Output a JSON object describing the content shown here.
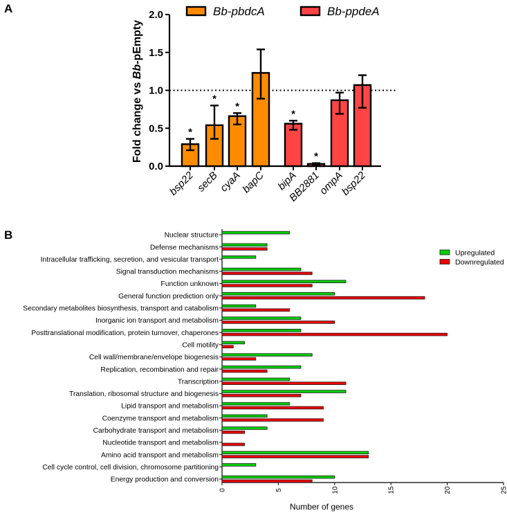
{
  "panels": {
    "a": "A",
    "b": "B"
  },
  "chart_data": [
    {
      "type": "bar",
      "panel": "A",
      "ylabel_prefix": "Fold change vs ",
      "ylabel_italic": "Bb",
      "ylabel_suffix": "-pEmpty",
      "ylim": [
        0,
        2.0
      ],
      "yticks": [
        "0.0",
        "0.5",
        "1.0",
        "1.5",
        "2.0"
      ],
      "reference_line": 1.0,
      "legend": [
        {
          "name": "Bb-pbdcA",
          "color": "#ff8c00"
        },
        {
          "name": "Bb-ppdeA",
          "color": "#ff4444"
        }
      ],
      "series": [
        {
          "name": "Bb-pbdcA",
          "color": "#ff8c00",
          "categories": [
            "bsp22",
            "secB",
            "cyaA",
            "bapC"
          ],
          "values": [
            0.29,
            0.54,
            0.66,
            1.23
          ],
          "err_low": [
            0.21,
            0.36,
            0.55,
            0.89
          ],
          "err_high": [
            0.36,
            0.8,
            0.7,
            1.54
          ],
          "significant": [
            true,
            true,
            true,
            false
          ]
        },
        {
          "name": "Bb-ppdeA",
          "color": "#ff4444",
          "categories": [
            "bipA",
            "BB2881",
            "ompA",
            "bsp22"
          ],
          "values": [
            0.56,
            0.03,
            0.87,
            1.07
          ],
          "err_low": [
            0.48,
            0.02,
            0.69,
            0.77
          ],
          "err_high": [
            0.6,
            0.04,
            0.97,
            1.2
          ],
          "significant": [
            true,
            true,
            false,
            false
          ]
        }
      ],
      "significance_mark": "*"
    },
    {
      "type": "bar",
      "panel": "B",
      "orientation": "horizontal",
      "xlabel": "Number of genes",
      "xlim": [
        0,
        25
      ],
      "xticks": [
        "0",
        "5",
        "10",
        "15",
        "20",
        "25"
      ],
      "legend_position": "top-right",
      "categories": [
        "Nuclear structure",
        "Defense mechanisms",
        "Intracellular trafficking, secretion, and vesicular transport",
        "Signal transduction mechanisms",
        "Function unknown",
        "General function prediction only",
        "Secondary metabolites biosynthesis, transport and catabolism",
        "Inorganic ion transport and metabolism",
        "Posttranslational modification, protein turnover, chaperones",
        "Cell motility",
        "Cell wall/membrane/envelope biogenesis",
        "Replication, recombination and repair",
        "Transcription",
        "Translation, ribosomal structure and biogenesis",
        "Lipid transport and metabolism",
        "Coenzyme transport and metabolism",
        "Carbohydrate transport and metabolism",
        "Nucleotide transport and metabolism",
        "Amino acid transport and metabolism",
        "Cell cycle control, cell division, chromosome partitioning",
        "Energy production and conversion"
      ],
      "series": [
        {
          "name": "Upregulated",
          "color": "#00cc00",
          "values": [
            6,
            4,
            3,
            7,
            11,
            10,
            3,
            7,
            7,
            2,
            8,
            7,
            6,
            11,
            6,
            4,
            4,
            0,
            13,
            3,
            10
          ]
        },
        {
          "name": "Downregulated",
          "color": "#ee0000",
          "values": [
            0,
            4,
            0,
            8,
            8,
            18,
            6,
            10,
            20,
            1,
            3,
            4,
            11,
            7,
            9,
            9,
            2,
            2,
            13,
            0,
            8
          ]
        }
      ]
    }
  ]
}
